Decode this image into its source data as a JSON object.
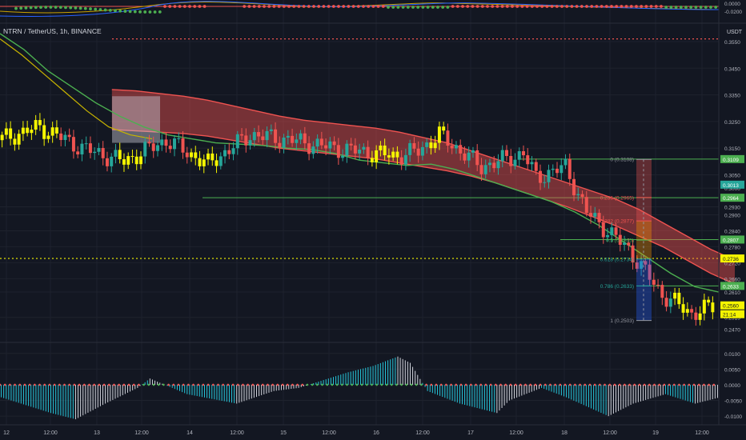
{
  "header": {
    "symbol": "NTRN / TetherUS, 1h, BINANCE",
    "quote": "USDT"
  },
  "colors": {
    "background": "#131722",
    "grid": "#1e222d",
    "up_candle": "#26a69a",
    "down_candle": "#ef5350",
    "yellow_candle": "#f5f500",
    "ribbon": "#ef5350",
    "ma_green": "#4caf50",
    "ma_yellow": "#c8b400",
    "hist_blue": "#26c6da",
    "hist_white": "#d1d4dc"
  },
  "chart_data": [
    {
      "type": "line",
      "name": "top-oscillator-pane",
      "y_axis_label": "0.0000",
      "y_axis_lower_label": "-0.0200"
    },
    {
      "type": "candlestick",
      "name": "price-pane",
      "ylim": [
        0.243,
        0.361
      ],
      "y_ticks": [
        "0.3550",
        "0.3450",
        "0.3350",
        "0.3250",
        "0.3150",
        "0.3050",
        "0.3000",
        "0.2930",
        "0.2900",
        "0.2840",
        "0.2780",
        "0.2720",
        "0.2660",
        "0.2610",
        "0.2515",
        "0.2470"
      ],
      "x_ticks": [
        "12",
        "12:00",
        "13",
        "12:00",
        "14",
        "12:00",
        "15",
        "12:00",
        "16",
        "12:00",
        "17",
        "12:00",
        "18",
        "12:00",
        "19",
        "12:00"
      ],
      "price_labels": [
        {
          "value": 0.3109,
          "text": "0.3109",
          "color": "#4caf50"
        },
        {
          "value": 0.3013,
          "text": "0.3013",
          "color": "#26a69a"
        },
        {
          "value": 0.2964,
          "text": "0.2964",
          "color": "#4caf50"
        },
        {
          "value": 0.2807,
          "text": "0.2807",
          "color": "#4caf50"
        },
        {
          "value": 0.2736,
          "text": "0.2736",
          "color": "#f5f500"
        },
        {
          "value": 0.2633,
          "text": "0.2633",
          "color": "#4caf50"
        },
        {
          "value": 0.256,
          "text": "0.2560",
          "color": "#f5f500"
        }
      ],
      "countdown": "21:14",
      "horizontal_lines": [
        {
          "value": 0.3109,
          "color": "#4caf50"
        },
        {
          "value": 0.2964,
          "color": "#4caf50"
        },
        {
          "value": 0.2807,
          "color": "#4caf50"
        },
        {
          "value": 0.2633,
          "color": "#4caf50"
        }
      ],
      "dotted_lines": [
        {
          "value": 0.356,
          "color": "#ef5350"
        },
        {
          "value": 0.2736,
          "color": "#f5f500"
        }
      ],
      "fib_levels": [
        {
          "label": "0 (0.3108)",
          "value": 0.3108,
          "color": "#9598a1"
        },
        {
          "label": "0.236 (0.2965)",
          "value": 0.2965,
          "color": "#ef5350"
        },
        {
          "label": "0.382 (0.2877)",
          "value": 0.2877,
          "color": "#ef5350"
        },
        {
          "label": "0.5 (0.2805)",
          "value": 0.2805,
          "color": "#4caf50"
        },
        {
          "label": "0.618 (0.2734)",
          "value": 0.2734,
          "color": "#26a69a"
        },
        {
          "label": "0.786 (0.2633)",
          "value": 0.2633,
          "color": "#26a69a"
        },
        {
          "label": "1 (0.2503)",
          "value": 0.2503,
          "color": "#9598a1"
        }
      ],
      "ribbon_upper": [
        0.337,
        0.3365,
        0.3355,
        0.3345,
        0.333,
        0.331,
        0.329,
        0.327,
        0.3255,
        0.3245,
        0.3235,
        0.3225,
        0.321,
        0.319,
        0.317,
        0.314,
        0.311,
        0.308,
        0.305,
        0.302,
        0.299,
        0.296,
        0.292,
        0.287,
        0.282,
        0.277,
        0.273
      ],
      "ribbon_lower": [
        0.322,
        0.3215,
        0.321,
        0.3205,
        0.3195,
        0.318,
        0.3165,
        0.315,
        0.314,
        0.313,
        0.312,
        0.311,
        0.3095,
        0.308,
        0.3065,
        0.3045,
        0.302,
        0.299,
        0.296,
        0.293,
        0.2895,
        0.286,
        0.282,
        0.278,
        0.273,
        0.268,
        0.264
      ],
      "ribbon_x_start": 0.15,
      "ribbon_x_end": 0.985,
      "ma_green": [
        0.358,
        0.352,
        0.344,
        0.338,
        0.332,
        0.327,
        0.323,
        0.32,
        0.3185,
        0.317,
        0.3165,
        0.316,
        0.315,
        0.3145,
        0.313,
        0.3105,
        0.3095,
        0.3085,
        0.309,
        0.307,
        0.304,
        0.301,
        0.298,
        0.295,
        0.291,
        0.286,
        0.28,
        0.274,
        0.268,
        0.263,
        0.261
      ],
      "ma_yellow": [
        0.356,
        0.35,
        0.343,
        0.336,
        0.329,
        0.323,
        0.32,
        0.3185
      ]
    },
    {
      "type": "bar",
      "name": "macd-histogram-pane",
      "y_ticks": [
        "0.0100",
        "0.0050",
        "0.0000",
        "-0.0050",
        "-0.0100"
      ],
      "ylim": [
        -0.012,
        0.013
      ]
    }
  ]
}
